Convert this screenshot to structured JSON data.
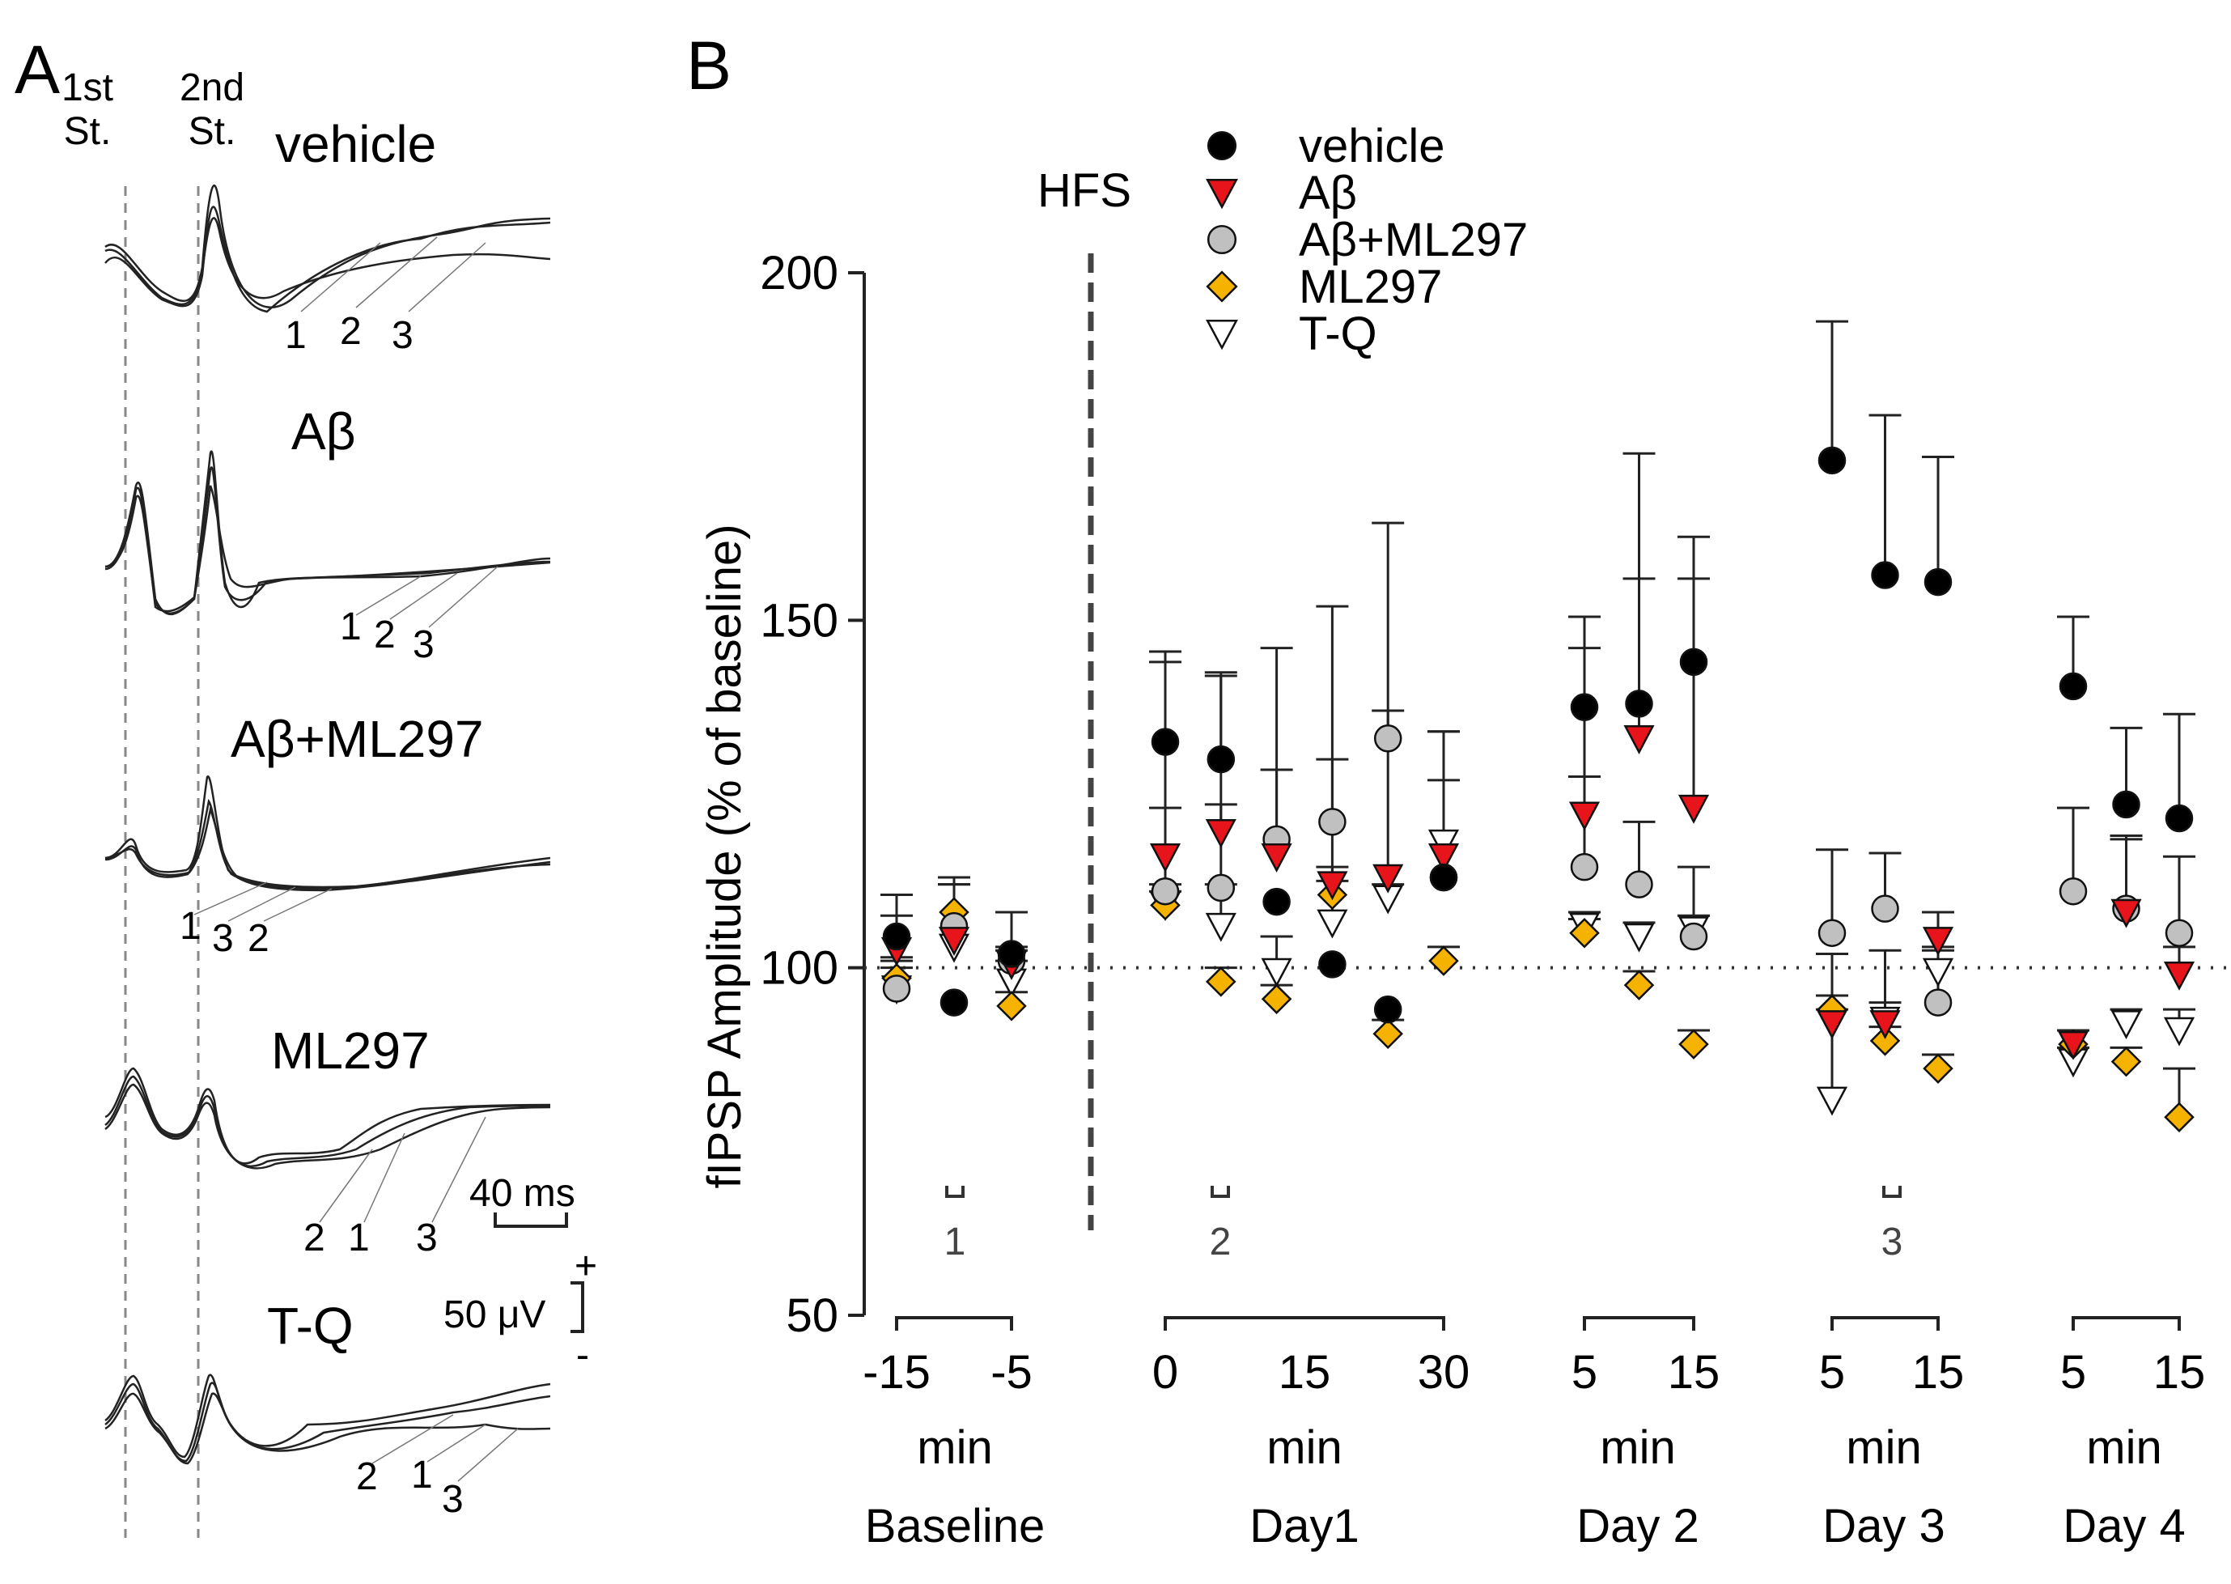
{
  "panel_a": {
    "letter": "A",
    "stim1_label": [
      "1st",
      "St."
    ],
    "stim2_label": [
      "2nd",
      "St."
    ],
    "traces": [
      {
        "name": "vehicle",
        "markers": [
          "1",
          "2",
          "3"
        ]
      },
      {
        "name": "Aβ",
        "markers": [
          "1",
          "2",
          "3"
        ]
      },
      {
        "name": "Aβ+ML297",
        "markers": [
          "1",
          "3",
          "2"
        ]
      },
      {
        "name": "ML297",
        "markers": [
          "2",
          "1",
          "3"
        ]
      },
      {
        "name": "T-Q",
        "markers": [
          "2",
          "1",
          "3"
        ]
      }
    ],
    "scale_time": "40 ms",
    "scale_voltage": "50 μV",
    "polarity_plus": "+",
    "polarity_minus": "-"
  },
  "panel_b": {
    "letter": "B",
    "hfs_label": "HFS",
    "period_markers": [
      "1",
      "2",
      "3"
    ],
    "group_unit": "min"
  },
  "chart_data": {
    "type": "scatter",
    "ylabel": "fIPSP Amplitude (% of baseline)",
    "ylim": [
      50,
      200
    ],
    "yticks": [
      50,
      100,
      150,
      200
    ],
    "reference_line": 100,
    "legend": [
      {
        "name": "vehicle",
        "marker": "circle",
        "color": "#000000"
      },
      {
        "name": "Aβ",
        "marker": "triangle-down",
        "color": "#e8141b"
      },
      {
        "name": "Aβ+ML297",
        "marker": "circle",
        "color": "#c0c0c0"
      },
      {
        "name": "ML297",
        "marker": "diamond",
        "color": "#f5b300"
      },
      {
        "name": "T-Q",
        "marker": "triangle-down",
        "color": "#ffffff"
      }
    ],
    "legend_position": "top-center",
    "groups": [
      {
        "name": "Baseline",
        "unit": "min",
        "ticks": [
          "-15",
          "-5"
        ],
        "times": [
          -15,
          -10,
          -5
        ],
        "series": {
          "vehicle": {
            "values": [
              104.5,
              95.0,
              102.0
            ],
            "err_up": [
              6,
              0,
              6
            ]
          },
          "Aβ": {
            "values": [
              102.5,
              104.0,
              100.5
            ],
            "err_up": [
              5,
              8,
              2
            ]
          },
          "Aβ+ML297": {
            "values": [
              97.0,
              106.0,
              101.0
            ],
            "err_up": [
              4,
              7,
              2
            ]
          },
          "ML297": {
            "values": [
              98.5,
              108.0,
              94.5
            ],
            "err_up": [
              3,
              5,
              2
            ]
          },
          "T-Q": {
            "values": [
              97.0,
              103.0,
              98.0
            ],
            "err_up": [
              3,
              9,
              3
            ]
          }
        }
      },
      {
        "name": "Day1",
        "unit": "min",
        "ticks": [
          "0",
          "15",
          "30"
        ],
        "times": [
          0,
          6,
          12,
          18,
          24,
          30
        ],
        "series": {
          "vehicle": {
            "values": [
              132.5,
              130.0,
              109.5,
              100.5,
              94.0,
              113.0
            ],
            "err_up": [
              13,
              12,
              0,
              0,
              0,
              0
            ]
          },
          "Aβ": {
            "values": [
              116.0,
              119.5,
              116.0,
              112.0,
              113.0,
              116.0
            ],
            "err_up": [
              28,
              23,
              30,
              18,
              24,
              18
            ]
          },
          "Aβ+ML297": {
            "values": [
              111.0,
              111.5,
              118.5,
              121.0,
              133.0,
              113.0
            ],
            "err_up": [
              12,
              12,
              10,
              31,
              31,
              14
            ]
          },
          "ML297": {
            "values": [
              109.0,
              98.0,
              95.5,
              110.5,
              90.5,
              101.0
            ],
            "err_up": [
              2,
              2,
              2,
              2,
              2,
              2
            ]
          },
          "T-Q": {
            "values": [
              109.0,
              106.0,
              99.5,
              106.5,
              110.0,
              118.0
            ],
            "err_up": [
              3,
              6,
              5,
              8,
              2,
              16
            ]
          }
        }
      },
      {
        "name": "Day 2",
        "unit": "min",
        "ticks": [
          "5",
          "15"
        ],
        "times": [
          5,
          10,
          15
        ],
        "series": {
          "vehicle": {
            "values": [
              137.5,
              138.0,
              144.0
            ],
            "err_up": [
              13,
              36,
              18
            ]
          },
          "Aβ": {
            "values": [
              122.0,
              133.0,
              123.0
            ],
            "err_up": [
              24,
              23,
              33
            ]
          },
          "Aβ+ML297": {
            "values": [
              114.5,
              112.0,
              104.5
            ],
            "err_up": [
              13,
              9,
              10
            ]
          },
          "ML297": {
            "values": [
              105.0,
              97.5,
              89.0
            ],
            "err_up": [
              2,
              2,
              2
            ]
          },
          "T-Q": {
            "values": [
              106.0,
              104.5,
              105.5
            ],
            "err_up": [
              2,
              2,
              2
            ]
          }
        }
      },
      {
        "name": "Day 3",
        "unit": "min",
        "ticks": [
          "5",
          "15"
        ],
        "times": [
          5,
          10,
          15
        ],
        "series": {
          "vehicle": {
            "values": [
              173.0,
              156.5,
              155.5
            ],
            "err_up": [
              20,
              23,
              18
            ]
          },
          "Aβ": {
            "values": [
              92.0,
              92.0,
              104.0
            ],
            "err_up": [
              2,
              3,
              4
            ]
          },
          "Aβ+ML297": {
            "values": [
              105.0,
              108.5,
              95.0
            ],
            "err_up": [
              12,
              8,
              8
            ]
          },
          "ML297": {
            "values": [
              94.0,
              89.5,
              85.5
            ],
            "err_up": [
              2,
              2,
              2
            ]
          },
          "T-Q": {
            "values": [
              81.0,
              92.5,
              99.5
            ],
            "err_up": [
              21,
              10,
              3
            ]
          }
        }
      },
      {
        "name": "Day 4",
        "unit": "min",
        "ticks": [
          "5",
          "15"
        ],
        "times": [
          5,
          10,
          15
        ],
        "series": {
          "vehicle": {
            "values": [
              140.5,
              123.5,
              121.5
            ],
            "err_up": [
              10,
              11,
              15
            ]
          },
          "Aβ": {
            "values": [
              89.0,
              108.0,
              99.0
            ],
            "err_up": [
              2,
              11,
              4
            ]
          },
          "Aβ+ML297": {
            "values": [
              111.0,
              108.5,
              105.0
            ],
            "err_up": [
              12,
              10,
              11
            ]
          },
          "ML297": {
            "values": [
              89.0,
              86.5,
              78.5
            ],
            "err_up": [
              2,
              2,
              7
            ]
          },
          "T-Q": {
            "values": [
              86.5,
              92.0,
              91.0
            ],
            "err_up": [
              2,
              2,
              3
            ]
          }
        }
      }
    ]
  }
}
